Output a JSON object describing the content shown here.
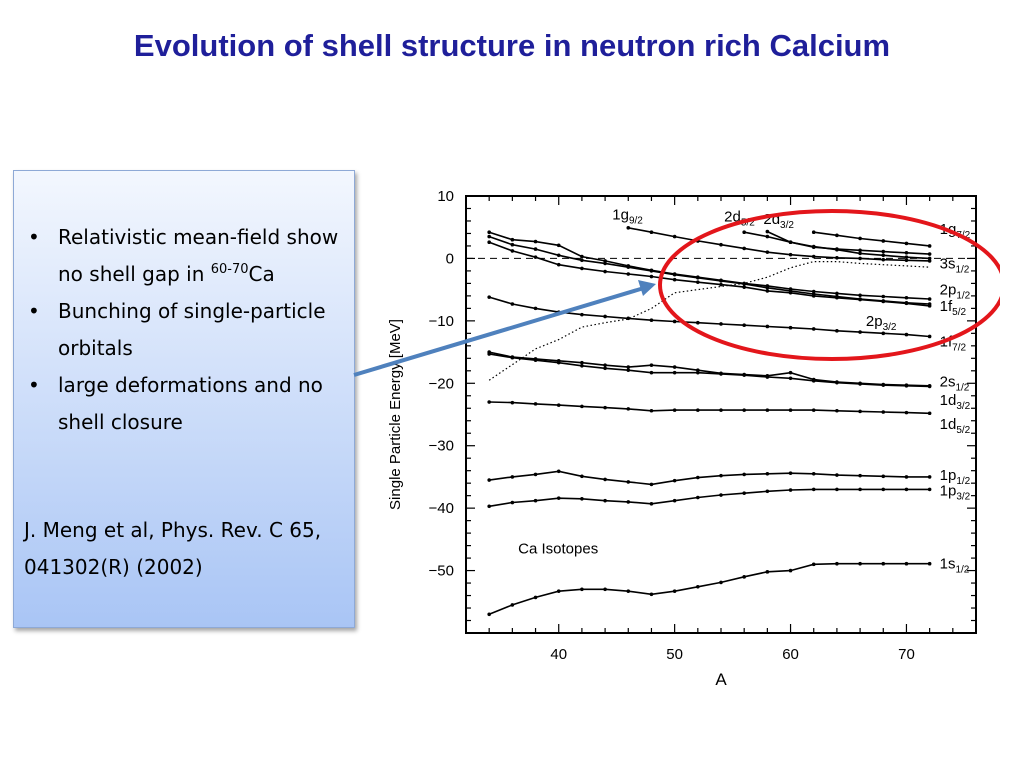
{
  "slide": {
    "title": "Evolution of shell structure in neutron rich Calcium",
    "bullets": [
      {
        "text": "Relativistic mean-field show no shell gap in ",
        "sup": "60-70",
        "after": "Ca"
      },
      {
        "text": "Bunching of single-particle orbitals"
      },
      {
        "text": "large deformations and no shell closure"
      }
    ],
    "citation": "J. Meng et al, Phys. Rev. C 65, 041302(R) (2002)",
    "highlight_color": "#e3161b",
    "arrow_color": "#4f81bd"
  },
  "chart_data": {
    "type": "line",
    "xlabel": "A",
    "ylabel": "Single Particle Energy [MeV]",
    "annotation": "Ca Isotopes",
    "xlim": [
      32,
      76
    ],
    "ylim": [
      -60,
      10
    ],
    "xticks": [
      40,
      50,
      60,
      70
    ],
    "yticks": [
      10,
      0,
      -10,
      -20,
      -30,
      -40,
      -50
    ],
    "fermi_line": 0,
    "series": [
      {
        "base": "1s",
        "sub": "1/2",
        "x": [
          34,
          36,
          38,
          40,
          42,
          44,
          46,
          48,
          50,
          52,
          54,
          56,
          58,
          60,
          62,
          64,
          66,
          68,
          70,
          72
        ],
        "y": [
          -57,
          -55.5,
          -54.3,
          -53.3,
          -53,
          -53,
          -53.3,
          -53.8,
          -53.3,
          -52.6,
          -51.9,
          -51,
          -50.2,
          -50,
          -49,
          -48.9,
          -48.9,
          -48.9,
          -48.9,
          -48.9
        ],
        "label_y": -48.9
      },
      {
        "base": "1p",
        "sub": "3/2",
        "x": [
          34,
          36,
          38,
          40,
          42,
          44,
          46,
          48,
          50,
          52,
          54,
          56,
          58,
          60,
          62,
          64,
          66,
          68,
          70,
          72
        ],
        "y": [
          -39.7,
          -39.1,
          -38.8,
          -38.4,
          -38.5,
          -38.8,
          -39,
          -39.3,
          -38.8,
          -38.3,
          -37.9,
          -37.6,
          -37.3,
          -37.1,
          -37,
          -37,
          -37,
          -37,
          -37,
          -37
        ],
        "label_y": -37.2
      },
      {
        "base": "1p",
        "sub": "1/2",
        "x": [
          34,
          36,
          38,
          40,
          42,
          44,
          46,
          48,
          50,
          52,
          54,
          56,
          58,
          60,
          62,
          64,
          66,
          68,
          70,
          72
        ],
        "y": [
          -35.5,
          -35,
          -34.6,
          -34.1,
          -34.9,
          -35.4,
          -35.8,
          -36.2,
          -35.6,
          -35.1,
          -34.8,
          -34.6,
          -34.5,
          -34.4,
          -34.5,
          -34.7,
          -34.8,
          -34.9,
          -35,
          -35
        ],
        "label_y": -34.7
      },
      {
        "base": "1d",
        "sub": "5/2",
        "x": [
          34,
          36,
          38,
          40,
          42,
          44,
          46,
          48,
          50,
          52,
          54,
          56,
          58,
          60,
          62,
          64,
          66,
          68,
          70,
          72
        ],
        "y": [
          -23,
          -23.1,
          -23.3,
          -23.5,
          -23.7,
          -23.9,
          -24.1,
          -24.4,
          -24.3,
          -24.3,
          -24.3,
          -24.3,
          -24.3,
          -24.3,
          -24.3,
          -24.4,
          -24.5,
          -24.6,
          -24.7,
          -24.8
        ],
        "label_y": -26.5
      },
      {
        "base": "1d",
        "sub": "3/2",
        "x": [
          34,
          36,
          38,
          40,
          42,
          44,
          46,
          48,
          50,
          52,
          54,
          56,
          58,
          60,
          62,
          64,
          66,
          68,
          70,
          72
        ],
        "y": [
          -15.3,
          -15.9,
          -16.3,
          -16.7,
          -17.2,
          -17.6,
          -17.9,
          -18.3,
          -18.3,
          -18.3,
          -18.5,
          -18.7,
          -19,
          -19.2,
          -19.6,
          -19.9,
          -20.1,
          -20.3,
          -20.4,
          -20.5
        ],
        "label_y": -22.7
      },
      {
        "base": "2s",
        "sub": "1/2",
        "x": [
          34,
          36,
          38,
          40,
          42,
          44,
          46,
          48,
          50,
          52,
          54,
          56,
          58,
          60,
          62,
          64,
          66,
          68,
          70,
          72
        ],
        "y": [
          -15,
          -15.8,
          -16.1,
          -16.4,
          -16.7,
          -17.1,
          -17.4,
          -17.1,
          -17.4,
          -17.9,
          -18.4,
          -18.6,
          -18.8,
          -18.3,
          -19.4,
          -19.8,
          -20,
          -20.2,
          -20.3,
          -20.4
        ],
        "label_y": -19.7
      },
      {
        "base": "1f",
        "sub": "7/2",
        "x": [
          34,
          36,
          38,
          40,
          42,
          44,
          46,
          48,
          50,
          52,
          54,
          56,
          58,
          60,
          62,
          64,
          66,
          68,
          70,
          72
        ],
        "y": [
          -6.2,
          -7.3,
          -8,
          -8.6,
          -9,
          -9.3,
          -9.6,
          -9.9,
          -10.1,
          -10.3,
          -10.5,
          -10.7,
          -10.9,
          -11.1,
          -11.3,
          -11.6,
          -11.8,
          -12,
          -12.2,
          -12.5
        ],
        "label_y": -13.3
      },
      {
        "base": "2p",
        "sub": "3/2",
        "x": [
          34,
          36,
          38,
          40,
          42,
          44,
          46,
          48,
          50,
          52,
          54,
          56,
          58,
          60,
          62,
          64,
          66,
          68,
          70,
          72
        ],
        "y": [
          2.6,
          1.2,
          0.2,
          -1,
          -1.6,
          -2.1,
          -2.5,
          -2.9,
          -3.4,
          -3.8,
          -4.2,
          -4.6,
          -5.2,
          -5.5,
          -6,
          -6.3,
          -6.6,
          -6.9,
          -7.2,
          -7.6
        ],
        "label_y": -10
      },
      {
        "base": "1f",
        "sub": "5/2",
        "x": [
          34,
          36,
          38,
          40,
          42,
          44,
          46,
          48,
          50,
          52,
          54,
          56,
          58,
          60,
          62,
          64,
          66,
          68,
          70,
          72
        ],
        "y": [
          3.5,
          2.2,
          1.5,
          0.5,
          -0.3,
          -0.8,
          -1.4,
          -2,
          -2.6,
          -3.1,
          -3.6,
          -4.1,
          -4.7,
          -5.2,
          -5.7,
          -6.1,
          -6.5,
          -6.8,
          -7.1,
          -7.3
        ],
        "label_y": -7.6
      },
      {
        "base": "2p",
        "sub": "1/2",
        "x": [
          34,
          36,
          38,
          40,
          42,
          44,
          46,
          48,
          50,
          52,
          54,
          56,
          58,
          60,
          62,
          64,
          66,
          68,
          70,
          72
        ],
        "y": [
          4.2,
          3,
          2.7,
          2.1,
          0.3,
          -0.4,
          -1.2,
          -1.9,
          -2.5,
          -3,
          -3.5,
          -4,
          -4.4,
          -4.9,
          -5.3,
          -5.6,
          -5.9,
          -6.1,
          -6.3,
          -6.5
        ],
        "label_y": -5
      },
      {
        "base": "3s",
        "sub": "1/2",
        "x": [
          34,
          36,
          38,
          40,
          42,
          44,
          46,
          48,
          50,
          52,
          54,
          56,
          58,
          60,
          62,
          64,
          66,
          68,
          70,
          72
        ],
        "y": [
          -19.5,
          -17,
          -14.5,
          -13,
          -11,
          -10.3,
          -9.7,
          -8,
          -5.5,
          -5,
          -4.5,
          -4,
          -3,
          -1.5,
          -0.5,
          -0.5,
          -0.8,
          -1,
          -1.2,
          -1.4
        ],
        "label_y": -0.8
      },
      {
        "base": "1g",
        "sub": "9/2",
        "x": [
          46,
          48,
          50,
          52,
          54,
          56,
          58,
          60,
          62,
          64,
          66,
          68,
          70,
          72
        ],
        "y": [
          4.9,
          4.2,
          3.5,
          2.8,
          2.2,
          1.6,
          1,
          0.6,
          0.3,
          0.1,
          0,
          -0.2,
          -0.3,
          -0.4
        ],
        "label_y": 7
      },
      {
        "base": "2d",
        "sub": "5/2",
        "x": [
          56,
          58,
          60,
          62,
          64,
          66,
          68,
          70,
          72
        ],
        "y": [
          4.2,
          3.5,
          2.6,
          1.9,
          1.4,
          0.8,
          0.5,
          0.2,
          0
        ],
        "label_y": 6.7
      },
      {
        "base": "2d",
        "sub": "3/2",
        "x": [
          58,
          60,
          62,
          64,
          66,
          68,
          70,
          72
        ],
        "y": [
          4.3,
          2.6,
          1.8,
          1.5,
          1.3,
          1.1,
          0.9,
          0.7
        ],
        "label_y": 6.3
      },
      {
        "base": "1g",
        "sub": "7/2",
        "x": [
          62,
          64,
          66,
          68,
          70,
          72
        ],
        "y": [
          4.2,
          3.7,
          3.2,
          2.8,
          2.4,
          2
        ],
        "label_y": 4.7
      }
    ]
  }
}
